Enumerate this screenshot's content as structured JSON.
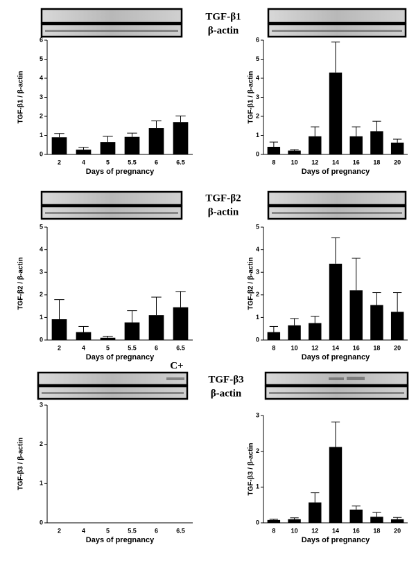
{
  "chart_data": [
    {
      "type": "bar",
      "categories": [
        "2",
        "4",
        "5",
        "5.5",
        "6",
        "6.5"
      ],
      "values": [
        0.9,
        0.25,
        0.65,
        0.92,
        1.38,
        1.7
      ],
      "errors": [
        0.2,
        0.12,
        0.3,
        0.2,
        0.38,
        0.32
      ],
      "ylim": [
        0,
        6
      ],
      "yticks": [
        0,
        1,
        2,
        3,
        4,
        5,
        6
      ],
      "xlabel": "Days of pregnancy",
      "ylabel": "TGF-β1 / β-actin",
      "color": "#000000"
    },
    {
      "type": "bar",
      "categories": [
        "8",
        "10",
        "12",
        "14",
        "16",
        "18",
        "20"
      ],
      "values": [
        0.4,
        0.2,
        0.95,
        4.3,
        0.95,
        1.22,
        0.62
      ],
      "errors": [
        0.25,
        0.05,
        0.5,
        1.6,
        0.5,
        0.52,
        0.18
      ],
      "ylim": [
        0,
        6
      ],
      "yticks": [
        0,
        1,
        2,
        3,
        4,
        5,
        6
      ],
      "xlabel": "Days of pregnancy",
      "ylabel": "TGF-β1 / β-actin",
      "color": "#000000"
    },
    {
      "type": "bar",
      "categories": [
        "2",
        "4",
        "5",
        "5.5",
        "6",
        "6.5"
      ],
      "values": [
        0.92,
        0.35,
        0.1,
        0.78,
        1.1,
        1.45
      ],
      "errors": [
        0.87,
        0.25,
        0.07,
        0.52,
        0.8,
        0.7
      ],
      "ylim": [
        0,
        5
      ],
      "yticks": [
        0,
        1,
        2,
        3,
        4,
        5
      ],
      "xlabel": "Days of pregnancy",
      "ylabel": "TGF-β2 / β-actin",
      "color": "#000000"
    },
    {
      "type": "bar",
      "categories": [
        "8",
        "10",
        "12",
        "14",
        "16",
        "18",
        "20"
      ],
      "values": [
        0.35,
        0.65,
        0.75,
        3.38,
        2.2,
        1.55,
        1.25
      ],
      "errors": [
        0.25,
        0.3,
        0.3,
        1.15,
        1.42,
        0.55,
        0.85
      ],
      "ylim": [
        0,
        5
      ],
      "yticks": [
        0,
        1,
        2,
        3,
        4,
        5
      ],
      "xlabel": "Days of pregnancy",
      "ylabel": "TGF-β2 / β-actin",
      "color": "#000000"
    },
    {
      "type": "bar",
      "categories": [
        "2",
        "4",
        "5",
        "5.5",
        "6",
        "6.5"
      ],
      "ylim": [
        0,
        3
      ],
      "yticks": [
        0,
        1,
        2,
        3
      ],
      "xlabel": "Days of pregnancy",
      "ylabel": "TGF-β3 / β-actin",
      "color": "#000000"
    },
    {
      "type": "bar",
      "categories": [
        "8",
        "10",
        "12",
        "14",
        "16",
        "18",
        "20"
      ],
      "values": [
        0.08,
        0.1,
        0.57,
        2.12,
        0.37,
        0.17,
        0.1
      ],
      "errors": [
        0.02,
        0.04,
        0.27,
        0.7,
        0.1,
        0.12,
        0.05
      ],
      "ylim": [
        0,
        3
      ],
      "yticks": [
        0,
        1,
        2,
        3
      ],
      "xlabel": "Days of pregnancy",
      "ylabel": "TGF-β3 / β-actin",
      "color": "#000000"
    }
  ],
  "blot_labels": [
    {
      "target": "TGF-β1",
      "control": "β-actin"
    },
    {
      "target": "TGF-β2",
      "control": "β-actin"
    },
    {
      "target": "TGF-β3",
      "control": "β-actin"
    }
  ],
  "positive_control": "C+"
}
